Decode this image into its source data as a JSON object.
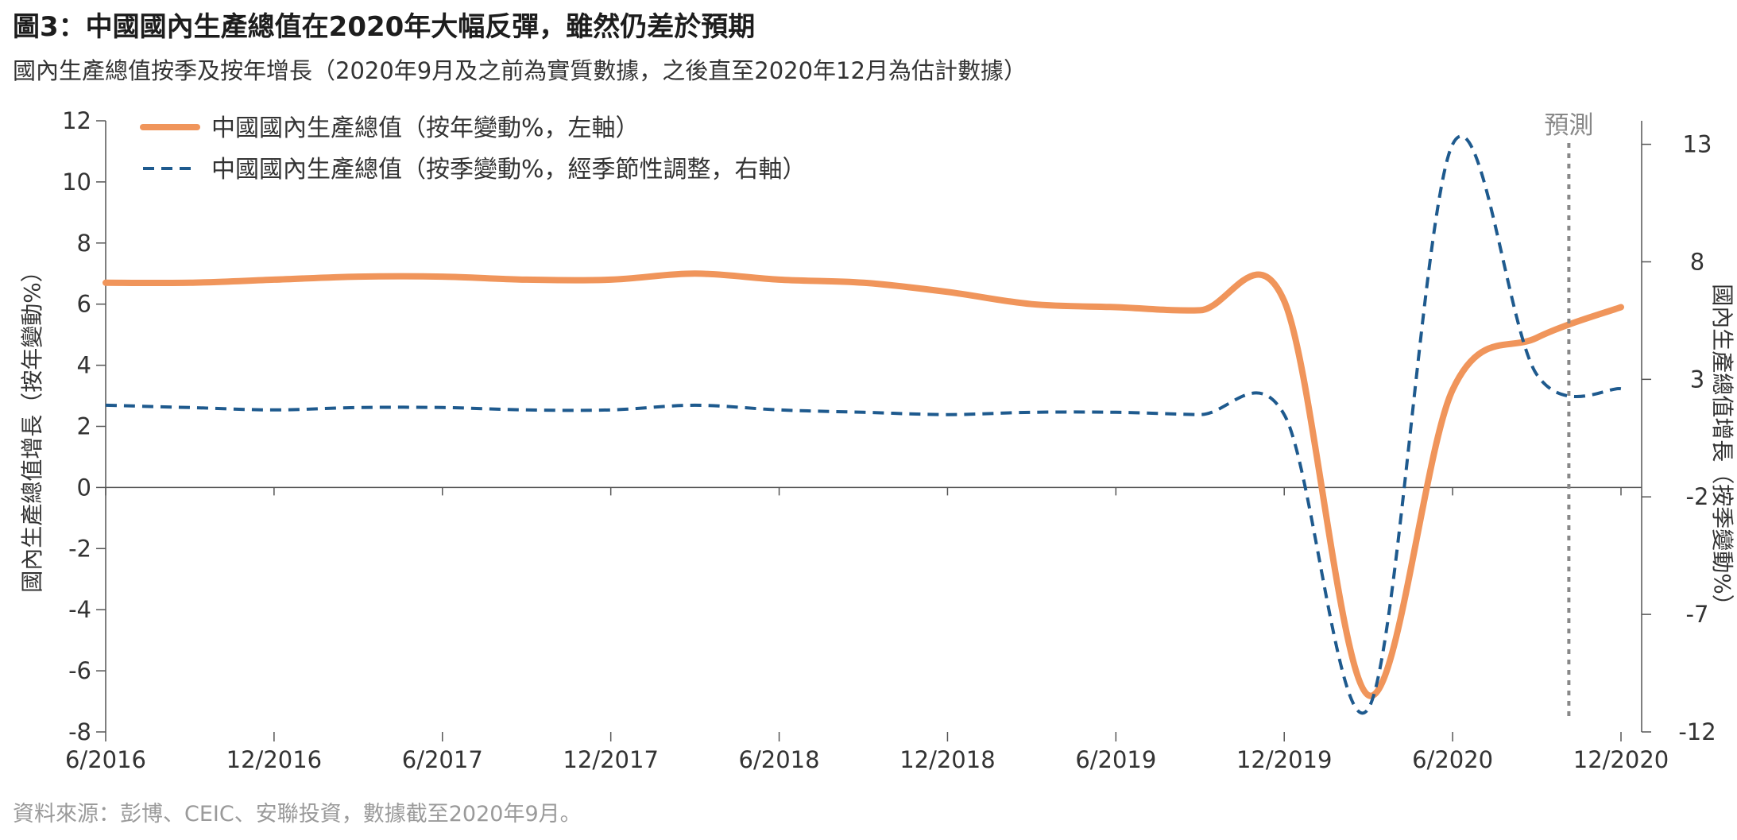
{
  "header": {
    "title": "圖3：中國國內生產總值在2020年大幅反彈，雖然仍差於預期",
    "subtitle": "國內生產總值按季及按年增長（2020年9月及之前為實質數據，之後直至2020年12月為估計數據）"
  },
  "footer": {
    "source": "資料來源：彭博、CEIC、安聯投資，數據截至2020年9月。"
  },
  "chart_data": {
    "type": "line",
    "x_ticks": [
      "6/2016",
      "12/2016",
      "6/2017",
      "12/2017",
      "6/2018",
      "12/2018",
      "6/2019",
      "12/2019",
      "6/2020",
      "12/2020"
    ],
    "x": [
      "2016-06",
      "2016-09",
      "2016-12",
      "2017-03",
      "2017-06",
      "2017-09",
      "2017-12",
      "2018-03",
      "2018-06",
      "2018-09",
      "2018-12",
      "2019-03",
      "2019-06",
      "2019-09",
      "2019-12",
      "2020-03",
      "2020-06",
      "2020-09",
      "2020-12"
    ],
    "left_axis": {
      "label": "國內生產總值增長（按年變動%）",
      "ticks": [
        "12",
        "10",
        "8",
        "6",
        "4",
        "2",
        "0",
        "-2",
        "-4",
        "-6",
        "-8"
      ],
      "range": [
        -8,
        12
      ]
    },
    "right_axis": {
      "label": "國內生產總值增長（按季變動%）",
      "ticks": [
        "13",
        "8",
        "3",
        "-2",
        "-7",
        "-12"
      ],
      "range": [
        -12,
        14
      ]
    },
    "series": [
      {
        "name": "中國國內生產總值（按年變動%，左軸）",
        "axis": "left",
        "style": "solid",
        "color": "#f0955b",
        "values": [
          6.7,
          6.7,
          6.8,
          6.9,
          6.9,
          6.8,
          6.8,
          7.0,
          6.8,
          6.7,
          6.4,
          6.0,
          5.9,
          5.8,
          6.1,
          -6.8,
          3.2,
          4.9,
          5.9
        ]
      },
      {
        "name": "中國國內生產總值（按季變動%，經季節性調整，右軸）",
        "axis": "right",
        "style": "dashed",
        "color": "#1e5a8e",
        "values": [
          1.9,
          1.8,
          1.7,
          1.8,
          1.8,
          1.7,
          1.7,
          1.9,
          1.7,
          1.6,
          1.5,
          1.6,
          1.6,
          1.5,
          1.5,
          -11.0,
          13.0,
          3.2,
          2.6
        ]
      }
    ],
    "forecast_marker": {
      "label": "預測",
      "x": "2020-10"
    },
    "legend_position": "top-left",
    "grid": false
  }
}
